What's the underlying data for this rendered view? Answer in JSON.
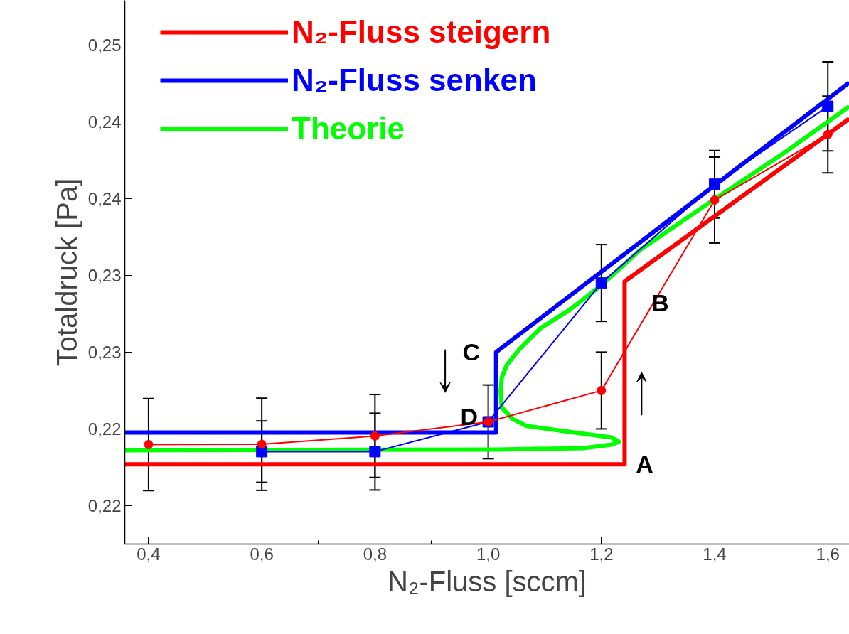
{
  "chart_data": {
    "type": "line",
    "xlabel": "N₂-Fluss [sccm]",
    "ylabel": "Totaldruck [Pa]",
    "xlim": [
      0.358,
      1.638
    ],
    "ylim": [
      0.2125,
      0.2479
    ],
    "xticks": [
      {
        "value": 0.4,
        "label": "0,4"
      },
      {
        "value": 0.6,
        "label": "0,6"
      },
      {
        "value": 0.8,
        "label": "0,8"
      },
      {
        "value": 1.0,
        "label": "1,0"
      },
      {
        "value": 1.2,
        "label": "1,2"
      },
      {
        "value": 1.4,
        "label": "1,4"
      },
      {
        "value": 1.6,
        "label": "1,6"
      }
    ],
    "yticks": [
      {
        "value": 0.215,
        "label": "0,22"
      },
      {
        "value": 0.22,
        "label": "0,22"
      },
      {
        "value": 0.225,
        "label": "0,23"
      },
      {
        "value": 0.23,
        "label": "0,23"
      },
      {
        "value": 0.235,
        "label": "0,24"
      },
      {
        "value": 0.24,
        "label": "0,24"
      },
      {
        "value": 0.245,
        "label": "0,25"
      }
    ],
    "grid": false,
    "legend": "top left",
    "series": [
      {
        "name": "N₂-Fluss steigern",
        "color": "#ff0000",
        "marker": "none",
        "x": [
          0.358,
          1.241,
          1.241,
          1.638
        ],
        "values": [
          0.21769,
          0.21769,
          0.2296,
          0.2402
        ]
      },
      {
        "name": "N₂-Fluss senken",
        "color": "#0000ff",
        "marker": "none",
        "x": [
          0.358,
          1.014,
          1.014,
          1.638
        ],
        "values": [
          0.21977,
          0.21977,
          0.225,
          0.24255
        ]
      },
      {
        "name": "Theorie",
        "color": "#00ff00",
        "marker": "none",
        "x": [
          0.358,
          1.017,
          1.168,
          1.218,
          1.231,
          1.218,
          1.143,
          1.068,
          1.043,
          1.024,
          1.022,
          1.024,
          1.033,
          1.055,
          1.093,
          1.143,
          1.2,
          1.269,
          1.394,
          1.52,
          1.638
        ],
        "values": [
          0.21861,
          0.21866,
          0.21875,
          0.21898,
          0.21917,
          0.21944,
          0.21981,
          0.22019,
          0.22065,
          0.22139,
          0.22241,
          0.22333,
          0.22417,
          0.22519,
          0.22657,
          0.22773,
          0.22935,
          0.23167,
          0.23481,
          0.2379,
          0.241
        ]
      },
      {
        "color": "#0000ff",
        "marker": "square",
        "x": [
          0.6,
          0.8,
          1.0,
          1.2,
          1.4,
          1.6
        ],
        "values": [
          0.21852,
          0.21852,
          0.22046,
          0.2295,
          0.23593,
          0.241
        ],
        "errors": [
          0.002,
          0.0025,
          null,
          0.0025,
          0.0022,
          0.0029
        ]
      },
      {
        "color": "#ff0000",
        "marker": "circle",
        "x": [
          0.4,
          0.6,
          0.8,
          1.0,
          1.2,
          1.4,
          1.6
        ],
        "values": [
          0.21898,
          0.219,
          0.21954,
          0.22046,
          0.2225,
          0.2349,
          0.23917
        ],
        "errors": [
          0.003,
          0.003,
          0.0027,
          0.0024,
          0.0025,
          0.0028,
          0.0025
        ]
      }
    ],
    "annotations": [
      "A",
      "B",
      "C",
      "D"
    ]
  }
}
